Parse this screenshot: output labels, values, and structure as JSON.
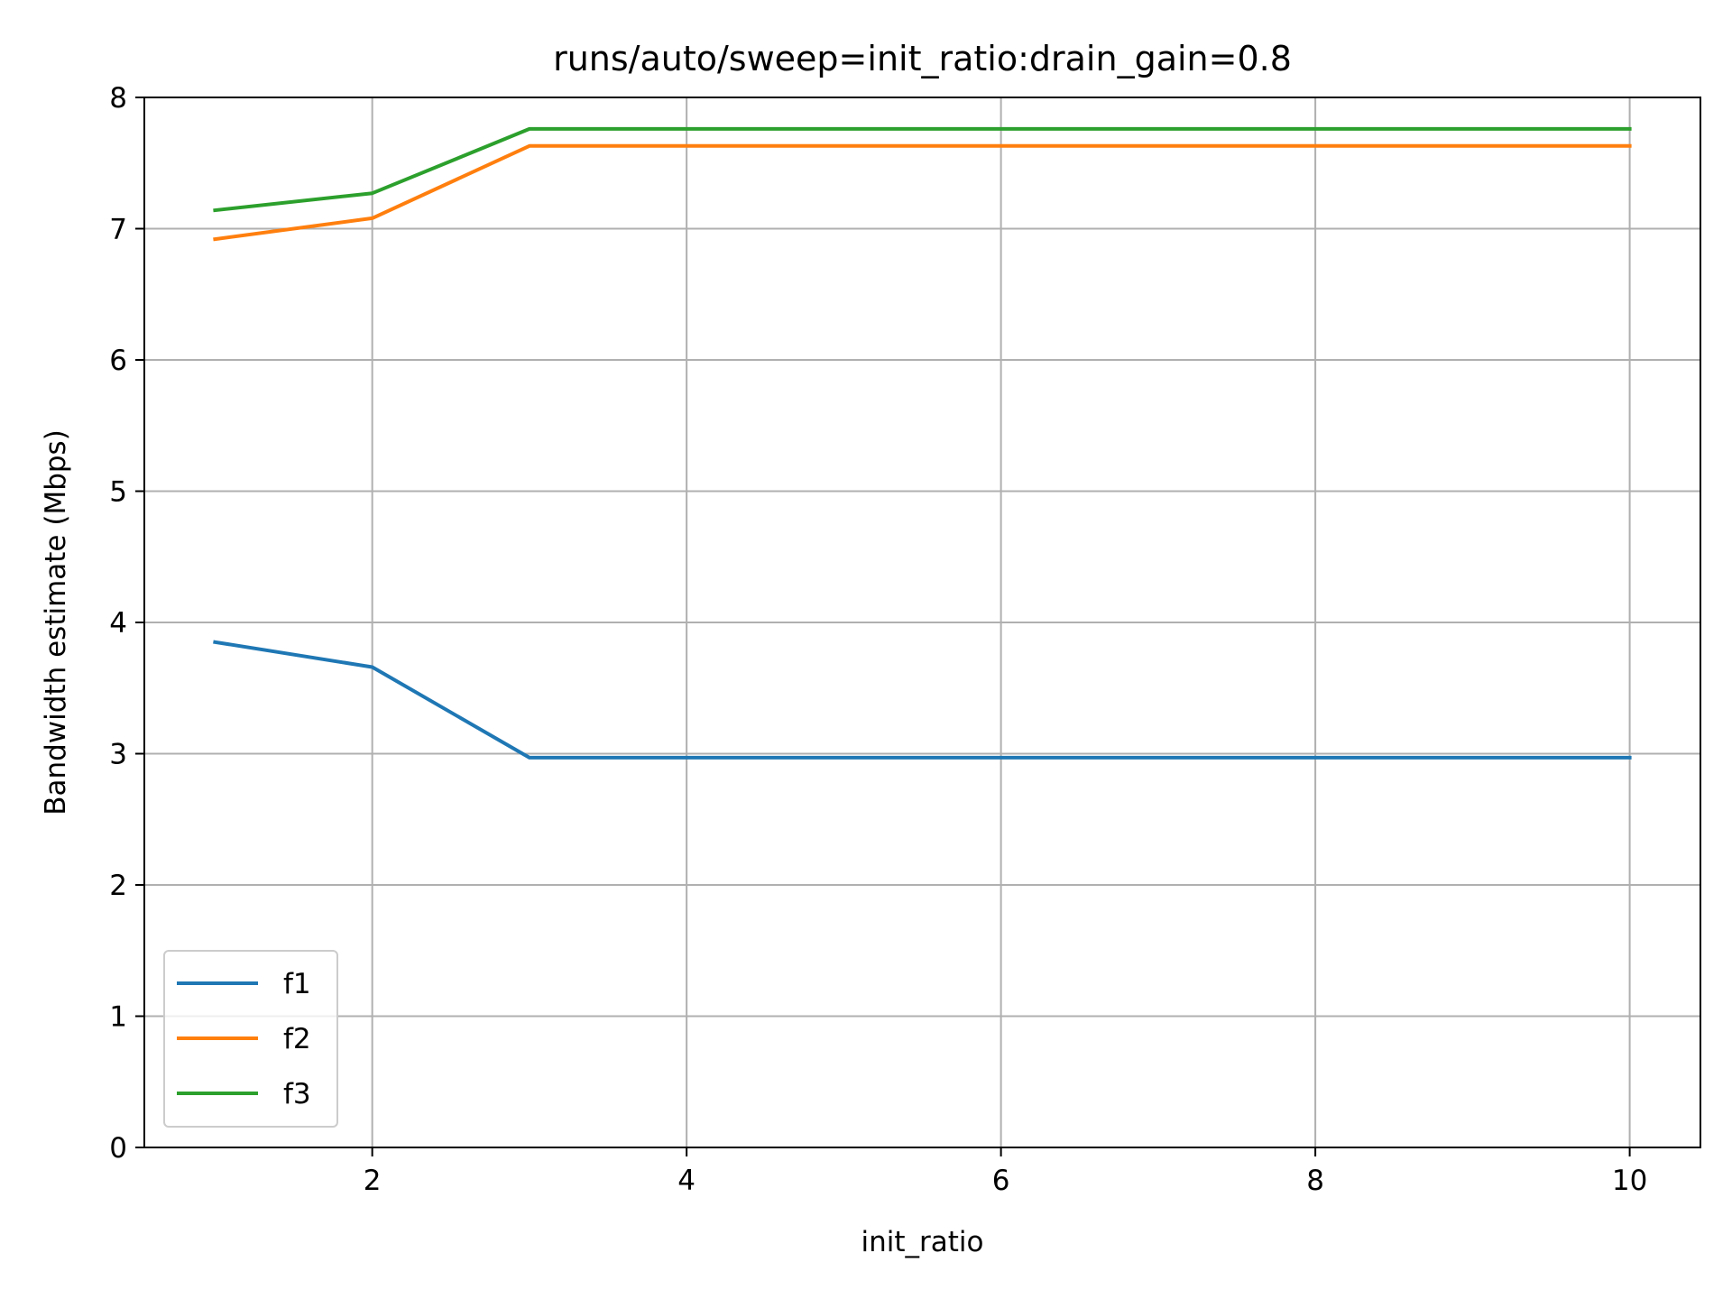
{
  "chart_data": {
    "type": "line",
    "title": "runs/auto/sweep=init_ratio:drain_gain=0.8",
    "xlabel": "init_ratio",
    "ylabel": "Bandwidth estimate (Mbps)",
    "x": [
      1,
      2,
      3,
      4,
      5,
      6,
      7,
      8,
      9,
      10
    ],
    "xlim": [
      0.55,
      10.45
    ],
    "ylim": [
      0,
      8
    ],
    "xticks": [
      2,
      4,
      6,
      8,
      10
    ],
    "yticks": [
      0,
      1,
      2,
      3,
      4,
      5,
      6,
      7,
      8
    ],
    "grid": true,
    "legend_position": "lower-left",
    "series": [
      {
        "name": "f1",
        "color": "#1f77b4",
        "values": [
          3.85,
          3.66,
          2.97,
          2.97,
          2.97,
          2.97,
          2.97,
          2.97,
          2.97,
          2.97
        ]
      },
      {
        "name": "f2",
        "color": "#ff7f0e",
        "values": [
          6.92,
          7.08,
          7.63,
          7.63,
          7.63,
          7.63,
          7.63,
          7.63,
          7.63,
          7.63
        ]
      },
      {
        "name": "f3",
        "color": "#2ca02c",
        "values": [
          7.14,
          7.27,
          7.76,
          7.76,
          7.76,
          7.76,
          7.76,
          7.76,
          7.76,
          7.76
        ]
      }
    ]
  }
}
